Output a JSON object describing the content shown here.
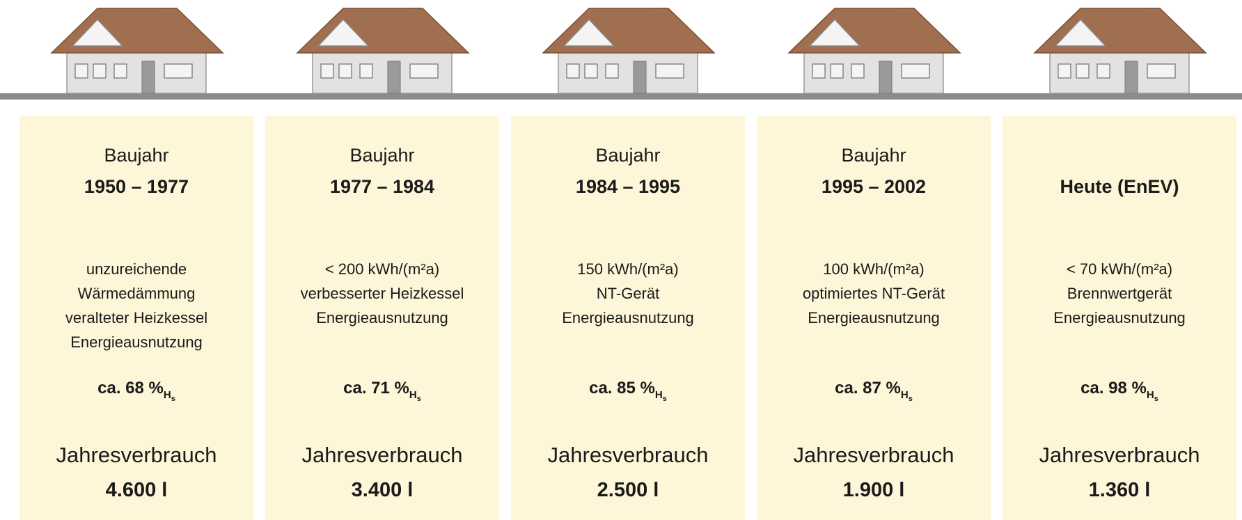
{
  "columns": [
    {
      "label": "Baujahr",
      "period": "1950 – 1977",
      "description": [
        "unzureichende",
        "Wärmedämmung",
        "veralteter Heizkessel",
        "Energieausnutzung"
      ],
      "efficiency": "ca. 68 %",
      "efficiency_index": "H",
      "efficiency_index_sub": "s",
      "consumption_label": "Jahresverbrauch",
      "consumption": "4.600 l"
    },
    {
      "label": "Baujahr",
      "period": "1977 – 1984",
      "description": [
        "< 200 kWh/(m²a)",
        "verbesserter Heizkessel",
        "Energieausnutzung"
      ],
      "efficiency": "ca. 71 %",
      "efficiency_index": "H",
      "efficiency_index_sub": "s",
      "consumption_label": "Jahresverbrauch",
      "consumption": "3.400 l"
    },
    {
      "label": "Baujahr",
      "period": "1984 – 1995",
      "description": [
        "150 kWh/(m²a)",
        "NT-Gerät",
        "Energieausnutzung"
      ],
      "efficiency": "ca. 85 %",
      "efficiency_index": "H",
      "efficiency_index_sub": "s",
      "consumption_label": "Jahresverbrauch",
      "consumption": "2.500 l"
    },
    {
      "label": "Baujahr",
      "period": "1995 – 2002",
      "description": [
        "100 kWh/(m²a)",
        "optimiertes NT-Gerät",
        "Energieausnutzung"
      ],
      "efficiency": "ca. 87 %",
      "efficiency_index": "H",
      "efficiency_index_sub": "s",
      "consumption_label": "Jahresverbrauch",
      "consumption": "1.900 l"
    },
    {
      "period": "Heute (EnEV)",
      "description": [
        "< 70 kWh/(m²a)",
        "Brennwertgerät",
        "Energieausnutzung"
      ],
      "efficiency": "ca. 98 %",
      "efficiency_index": "H",
      "efficiency_index_sub": "s",
      "consumption_label": "Jahresverbrauch",
      "consumption": "1.360 l"
    }
  ]
}
